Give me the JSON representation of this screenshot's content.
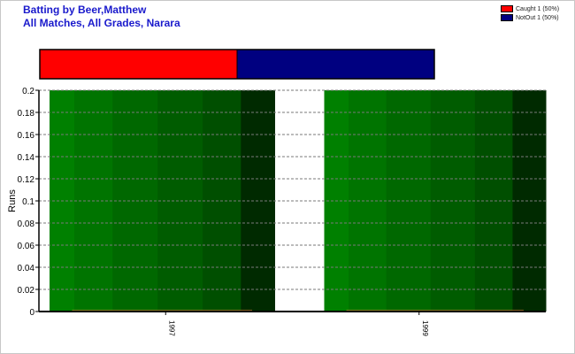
{
  "title": {
    "line1": "Batting by Beer,Matthew",
    "line2": "All Matches, All Grades, Narara"
  },
  "legend": [
    {
      "label": "Caught 1 (50%)",
      "color": "#ff0000"
    },
    {
      "label": "NotOut 1 (50%)",
      "color": "#000080"
    }
  ],
  "chart_data": [
    {
      "type": "bar",
      "description_stack": "dismissal-share",
      "series": [
        {
          "name": "Caught",
          "value": 1,
          "percent": 50,
          "color": "#ff0000"
        },
        {
          "name": "NotOut",
          "value": 1,
          "percent": 50,
          "color": "#000080"
        }
      ]
    },
    {
      "type": "bar",
      "categories": [
        "1997",
        "1999"
      ],
      "values": [
        0,
        0
      ],
      "ylabel": "Runs",
      "xlabel": "",
      "ylim": [
        0,
        0.2
      ],
      "yticks": [
        "0",
        "0.02",
        "0.04",
        "0.06",
        "0.08",
        "0.1",
        "0.12",
        "0.14",
        "0.16",
        "0.18",
        "0.2"
      ],
      "grid": true,
      "bar_color": "#ff8c40",
      "background_band_colors": [
        "#008000",
        "#007400",
        "#006800",
        "#005c00",
        "#004f00",
        "#002a00"
      ]
    }
  ]
}
